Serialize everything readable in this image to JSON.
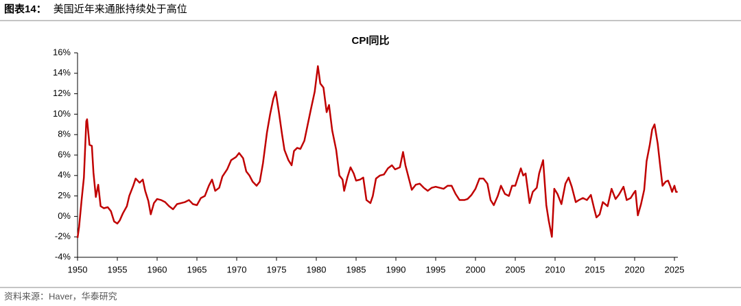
{
  "header": {
    "label": "图表14：",
    "title": "美国近年来通胀持续处于高位"
  },
  "footer": "资料来源：Haver，华泰研究",
  "chart_data": {
    "type": "line",
    "title": "CPI同比",
    "x": [
      1950.0,
      1950.2,
      1950.5,
      1950.8,
      1951.1,
      1951.2,
      1951.5,
      1951.8,
      1952.0,
      1952.3,
      1952.6,
      1952.9,
      1953.3,
      1953.8,
      1954.2,
      1954.6,
      1955.0,
      1955.3,
      1955.7,
      1956.2,
      1956.5,
      1957.0,
      1957.3,
      1957.8,
      1958.2,
      1958.5,
      1958.9,
      1959.2,
      1959.6,
      1960.0,
      1960.5,
      1961.0,
      1961.5,
      1962.0,
      1962.5,
      1963.0,
      1963.5,
      1964.0,
      1964.5,
      1965.0,
      1965.5,
      1966.0,
      1966.5,
      1966.9,
      1967.3,
      1967.8,
      1968.2,
      1968.8,
      1969.3,
      1969.9,
      1970.3,
      1970.8,
      1971.2,
      1971.6,
      1972.0,
      1972.5,
      1972.9,
      1973.3,
      1973.8,
      1974.2,
      1974.6,
      1974.9,
      1975.3,
      1975.7,
      1976.0,
      1976.5,
      1976.9,
      1977.2,
      1977.6,
      1978.0,
      1978.5,
      1978.9,
      1979.3,
      1979.8,
      1980.2,
      1980.5,
      1980.9,
      1981.3,
      1981.6,
      1982.0,
      1982.5,
      1982.9,
      1983.3,
      1983.5,
      1983.9,
      1984.3,
      1984.7,
      1985.0,
      1985.5,
      1985.9,
      1986.3,
      1986.8,
      1987.1,
      1987.5,
      1988.0,
      1988.5,
      1989.0,
      1989.5,
      1989.9,
      1990.5,
      1990.9,
      1991.2,
      1991.6,
      1992.0,
      1992.5,
      1993.0,
      1993.5,
      1994.0,
      1994.5,
      1995.0,
      1995.5,
      1996.0,
      1996.5,
      1997.0,
      1997.5,
      1998.0,
      1998.6,
      1999.0,
      1999.5,
      2000.0,
      2000.5,
      2001.0,
      2001.5,
      2001.9,
      2002.3,
      2002.8,
      2003.2,
      2003.7,
      2004.2,
      2004.6,
      2005.0,
      2005.7,
      2006.0,
      2006.3,
      2006.8,
      2007.2,
      2007.7,
      2008.0,
      2008.5,
      2008.9,
      2009.2,
      2009.6,
      2009.9,
      2010.3,
      2010.8,
      2011.3,
      2011.7,
      2012.1,
      2012.6,
      2013.0,
      2013.5,
      2014.0,
      2014.5,
      2014.9,
      2015.2,
      2015.6,
      2016.0,
      2016.6,
      2017.1,
      2017.6,
      2018.0,
      2018.6,
      2019.0,
      2019.5,
      2019.9,
      2020.1,
      2020.4,
      2020.8,
      2021.2,
      2021.5,
      2021.9,
      2022.2,
      2022.5,
      2022.9,
      2023.2,
      2023.5,
      2023.9,
      2024.2,
      2024.5,
      2024.7,
      2025.0,
      2025.2,
      2025.4
    ],
    "series": [
      {
        "name": "CPI同比",
        "color": "#c00000",
        "values": [
          -2.1,
          -1.0,
          1.5,
          3.8,
          9.3,
          9.5,
          7.0,
          6.9,
          4.3,
          1.9,
          3.1,
          1.0,
          0.8,
          0.9,
          0.5,
          -0.5,
          -0.7,
          -0.4,
          0.3,
          1.0,
          2.0,
          3.0,
          3.7,
          3.3,
          3.6,
          2.5,
          1.5,
          0.2,
          1.3,
          1.7,
          1.6,
          1.4,
          1.0,
          0.7,
          1.2,
          1.3,
          1.4,
          1.6,
          1.2,
          1.1,
          1.8,
          2.0,
          3.0,
          3.6,
          2.5,
          2.8,
          3.9,
          4.6,
          5.5,
          5.8,
          6.2,
          5.7,
          4.4,
          4.0,
          3.4,
          3.0,
          3.4,
          5.2,
          8.2,
          10.0,
          11.5,
          12.2,
          10.2,
          8.0,
          6.5,
          5.5,
          5.0,
          6.4,
          6.7,
          6.6,
          7.4,
          8.9,
          10.4,
          12.2,
          14.7,
          13.0,
          12.6,
          10.2,
          10.9,
          8.4,
          6.5,
          4.0,
          3.6,
          2.5,
          3.8,
          4.8,
          4.2,
          3.5,
          3.6,
          3.8,
          1.6,
          1.3,
          2.0,
          3.7,
          4.0,
          4.1,
          4.7,
          5.0,
          4.6,
          4.8,
          6.3,
          5.0,
          3.8,
          2.6,
          3.1,
          3.2,
          2.8,
          2.5,
          2.8,
          2.9,
          2.8,
          2.7,
          3.0,
          3.0,
          2.2,
          1.6,
          1.6,
          1.7,
          2.1,
          2.7,
          3.7,
          3.7,
          3.2,
          1.6,
          1.1,
          2.0,
          3.0,
          2.2,
          2.0,
          3.0,
          3.0,
          4.7,
          4.0,
          4.2,
          1.3,
          2.4,
          2.8,
          4.2,
          5.5,
          1.1,
          -0.4,
          -2.0,
          2.7,
          2.2,
          1.2,
          3.2,
          3.8,
          2.9,
          1.4,
          1.6,
          1.8,
          1.6,
          2.1,
          0.8,
          -0.1,
          0.2,
          1.4,
          1.0,
          2.7,
          1.7,
          2.1,
          2.9,
          1.6,
          1.8,
          2.3,
          2.5,
          0.1,
          1.2,
          2.6,
          5.4,
          7.0,
          8.5,
          9.0,
          7.1,
          5.0,
          3.0,
          3.4,
          3.5,
          2.9,
          2.4,
          3.0,
          2.4,
          2.4
        ]
      }
    ],
    "xlim": [
      1950,
      2025
    ],
    "xticks": [
      1950,
      1955,
      1960,
      1965,
      1970,
      1975,
      1980,
      1985,
      1990,
      1995,
      2000,
      2005,
      2010,
      2015,
      2020,
      2025
    ],
    "ylim": [
      -4,
      16
    ],
    "yticks": [
      {
        "value": -4,
        "label": "-4%"
      },
      {
        "value": -2,
        "label": "-2%"
      },
      {
        "value": 0,
        "label": "0%"
      },
      {
        "value": 2,
        "label": "2%"
      },
      {
        "value": 4,
        "label": "4%"
      },
      {
        "value": 6,
        "label": "6%"
      },
      {
        "value": 8,
        "label": "8%"
      },
      {
        "value": 10,
        "label": "10%"
      },
      {
        "value": 12,
        "label": "12%"
      },
      {
        "value": 14,
        "label": "14%"
      },
      {
        "value": 16,
        "label": "16%"
      }
    ],
    "grid": false
  }
}
